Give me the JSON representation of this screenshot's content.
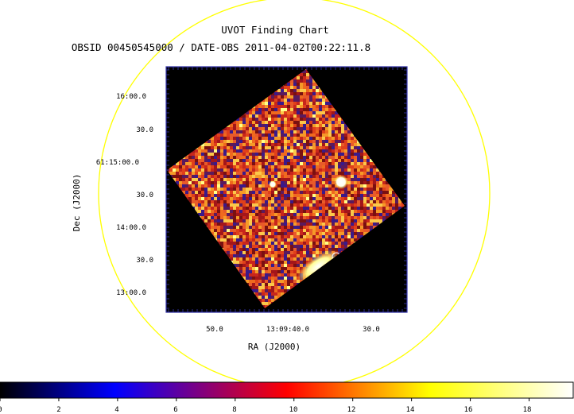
{
  "chart_data": {
    "type": "heatmap",
    "title": "UVOT Finding Chart",
    "subtitle": "OBSID 00450545000 / DATE-OBS 2011-04-02T00:22:11.8",
    "xlabel": "RA (J2000)",
    "ylabel": "Dec (J2000)",
    "x_ticks": [
      "50.0",
      "13:09:40.0",
      "30.0"
    ],
    "y_ticks": [
      "16:00.0",
      "30.0",
      "61:15:00.0",
      "30.0",
      "14:00.0",
      "30.0",
      "13:00.0"
    ],
    "colorbar": {
      "ticks": [
        "0",
        "2",
        "4",
        "6",
        "8",
        "10",
        "12",
        "14",
        "16",
        "18"
      ],
      "range": [
        0,
        19.5
      ],
      "colormap": [
        "#000000",
        "#0000ff",
        "#ff0000",
        "#ffff00",
        "#ffffff"
      ]
    },
    "sources": [
      "bright-source",
      "faint-source",
      "extended-emission"
    ],
    "colors": {
      "circle": "#ffff00",
      "frame": "#3333aa",
      "background": "#000000"
    }
  }
}
